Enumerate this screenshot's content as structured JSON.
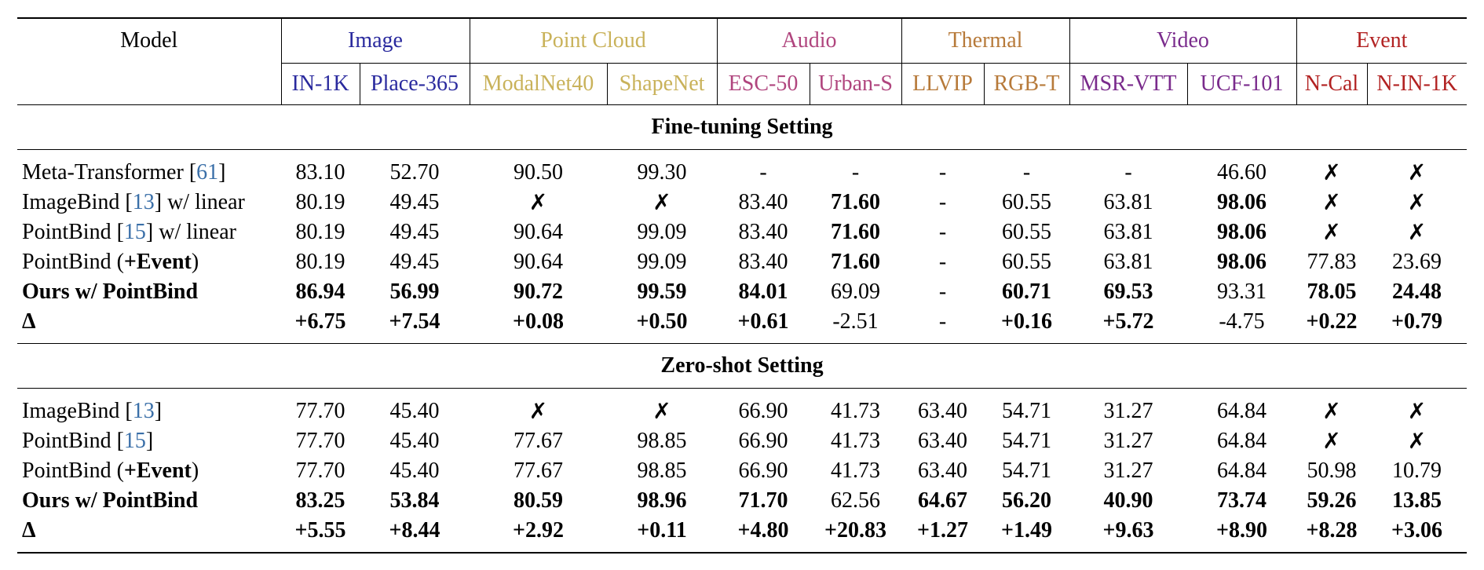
{
  "colors": {
    "image": "#2a2a9e",
    "point_cloud": "#c9b25a",
    "audio": "#b0457e",
    "thermal": "#b77a3a",
    "video": "#7a2b8c",
    "event": "#b22222",
    "citation": "#3a6fa8"
  },
  "header": {
    "model_label": "Model",
    "groups": [
      {
        "label": "Image",
        "color": "#2a2a9e"
      },
      {
        "label": "Point Cloud",
        "color": "#c9b25a"
      },
      {
        "label": "Audio",
        "color": "#b0457e"
      },
      {
        "label": "Thermal",
        "color": "#b77a3a"
      },
      {
        "label": "Video",
        "color": "#7a2b8c"
      },
      {
        "label": "Event",
        "color": "#b22222"
      }
    ],
    "datasets": [
      "IN-1K",
      "Place-365",
      "ModalNet40",
      "ShapeNet",
      "ESC-50",
      "Urban-S",
      "LLVIP",
      "RGB-T",
      "MSR-VTT",
      "UCF-101",
      "N-Cal",
      "N-IN-1K"
    ]
  },
  "sections": [
    {
      "title": "Fine-tuning Setting",
      "rows": [
        {
          "name": "Meta-Transformer",
          "cite": "61",
          "suffix": "",
          "bold_name": false,
          "cells": [
            "83.10",
            "52.70",
            "90.50",
            "99.30",
            "-",
            "-",
            "-",
            "-",
            "-",
            "46.60",
            "✗",
            "✗"
          ],
          "bold": [
            false,
            false,
            false,
            false,
            false,
            false,
            false,
            false,
            false,
            false,
            false,
            false
          ]
        },
        {
          "name": "ImageBind",
          "cite": "13",
          "suffix": " w/ linear",
          "bold_name": false,
          "cells": [
            "80.19",
            "49.45",
            "✗",
            "✗",
            "83.40",
            "71.60",
            "-",
            "60.55",
            "63.81",
            "98.06",
            "✗",
            "✗"
          ],
          "bold": [
            false,
            false,
            false,
            false,
            false,
            true,
            false,
            false,
            false,
            true,
            false,
            false
          ]
        },
        {
          "name": "PointBind",
          "cite": "15",
          "suffix": " w/ linear",
          "bold_name": false,
          "cells": [
            "80.19",
            "49.45",
            "90.64",
            "99.09",
            "83.40",
            "71.60",
            "-",
            "60.55",
            "63.81",
            "98.06",
            "✗",
            "✗"
          ],
          "bold": [
            false,
            false,
            false,
            false,
            false,
            true,
            false,
            false,
            false,
            true,
            false,
            false
          ]
        },
        {
          "name": "PointBind (",
          "cite": "",
          "suffix": "",
          "bold_part": "+Event",
          "tail": ")",
          "bold_name": false,
          "cells": [
            "80.19",
            "49.45",
            "90.64",
            "99.09",
            "83.40",
            "71.60",
            "-",
            "60.55",
            "63.81",
            "98.06",
            "77.83",
            "23.69"
          ],
          "bold": [
            false,
            false,
            false,
            false,
            false,
            true,
            false,
            false,
            false,
            true,
            false,
            false
          ]
        },
        {
          "name": "Ours w/ PointBind",
          "cite": "",
          "suffix": "",
          "bold_name": true,
          "cells": [
            "86.94",
            "56.99",
            "90.72",
            "99.59",
            "84.01",
            "69.09",
            "-",
            "60.71",
            "69.53",
            "93.31",
            "78.05",
            "24.48"
          ],
          "bold": [
            true,
            true,
            true,
            true,
            true,
            false,
            false,
            true,
            true,
            false,
            true,
            true
          ]
        },
        {
          "name": "Δ",
          "cite": "",
          "suffix": "",
          "bold_name": true,
          "cells": [
            "+6.75",
            "+7.54",
            "+0.08",
            "+0.50",
            "+0.61",
            "-2.51",
            "-",
            "+0.16",
            "+5.72",
            "-4.75",
            "+0.22",
            "+0.79"
          ],
          "bold": [
            true,
            true,
            true,
            true,
            true,
            false,
            false,
            true,
            true,
            false,
            true,
            true
          ]
        }
      ]
    },
    {
      "title": "Zero-shot Setting",
      "rows": [
        {
          "name": "ImageBind",
          "cite": "13",
          "suffix": "",
          "bold_name": false,
          "cells": [
            "77.70",
            "45.40",
            "✗",
            "✗",
            "66.90",
            "41.73",
            "63.40",
            "54.71",
            "31.27",
            "64.84",
            "✗",
            "✗"
          ],
          "bold": [
            false,
            false,
            false,
            false,
            false,
            false,
            false,
            false,
            false,
            false,
            false,
            false
          ]
        },
        {
          "name": "PointBind",
          "cite": "15",
          "suffix": "",
          "bold_name": false,
          "cells": [
            "77.70",
            "45.40",
            "77.67",
            "98.85",
            "66.90",
            "41.73",
            "63.40",
            "54.71",
            "31.27",
            "64.84",
            "✗",
            "✗"
          ],
          "bold": [
            false,
            false,
            false,
            false,
            false,
            false,
            false,
            false,
            false,
            false,
            false,
            false
          ]
        },
        {
          "name": "PointBind (",
          "cite": "",
          "suffix": "",
          "bold_part": "+Event",
          "tail": ")",
          "bold_name": false,
          "cells": [
            "77.70",
            "45.40",
            "77.67",
            "98.85",
            "66.90",
            "41.73",
            "63.40",
            "54.71",
            "31.27",
            "64.84",
            "50.98",
            "10.79"
          ],
          "bold": [
            false,
            false,
            false,
            false,
            false,
            false,
            false,
            false,
            false,
            false,
            false,
            false
          ]
        },
        {
          "name": "Ours w/ PointBind",
          "cite": "",
          "suffix": "",
          "bold_name": true,
          "cells": [
            "83.25",
            "53.84",
            "80.59",
            "98.96",
            "71.70",
            "62.56",
            "64.67",
            "56.20",
            "40.90",
            "73.74",
            "59.26",
            "13.85"
          ],
          "bold": [
            true,
            true,
            true,
            true,
            true,
            false,
            true,
            true,
            true,
            true,
            true,
            true
          ]
        },
        {
          "name": "Δ",
          "cite": "",
          "suffix": "",
          "bold_name": true,
          "cells": [
            "+5.55",
            "+8.44",
            "+2.92",
            "+0.11",
            "+4.80",
            "+20.83",
            "+1.27",
            "+1.49",
            "+9.63",
            "+8.90",
            "+8.28",
            "+3.06"
          ],
          "bold": [
            true,
            true,
            true,
            true,
            true,
            true,
            true,
            true,
            true,
            true,
            true,
            true
          ]
        }
      ]
    }
  ]
}
